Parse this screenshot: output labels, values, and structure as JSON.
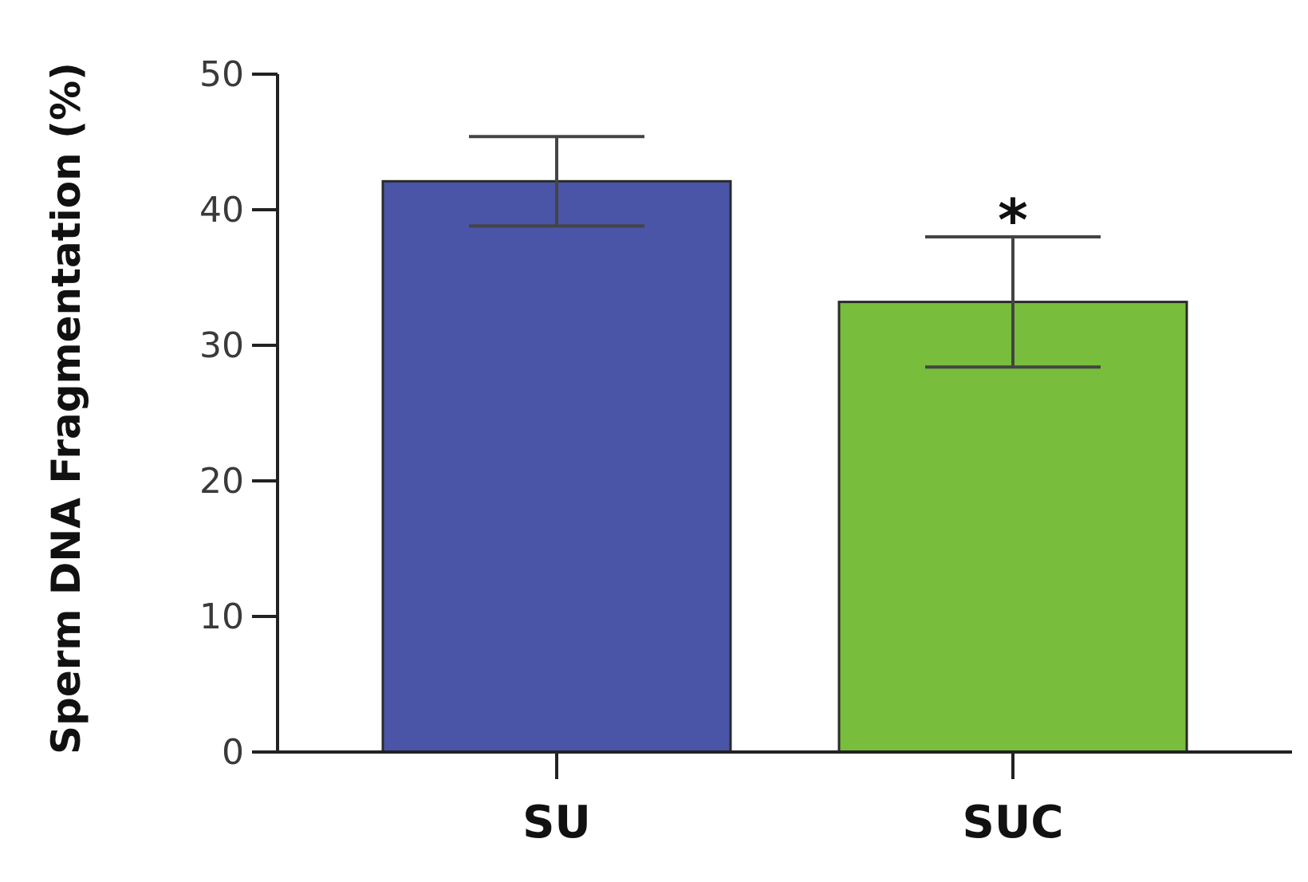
{
  "chart_data": {
    "type": "bar",
    "title": "",
    "xlabel": "",
    "ylabel": "Sperm DNA Fragmentation (%)",
    "ylim": [
      0,
      50
    ],
    "yticks": [
      0,
      10,
      20,
      30,
      40,
      50
    ],
    "categories": [
      "SU",
      "SUC"
    ],
    "values": [
      42.1,
      33.2
    ],
    "error": [
      3.3,
      4.8
    ],
    "colors": [
      "#4a55a8",
      "#78bd3c"
    ],
    "annotations": [
      {
        "category": "SUC",
        "text": "*"
      }
    ],
    "grid": false,
    "legend": "none"
  }
}
